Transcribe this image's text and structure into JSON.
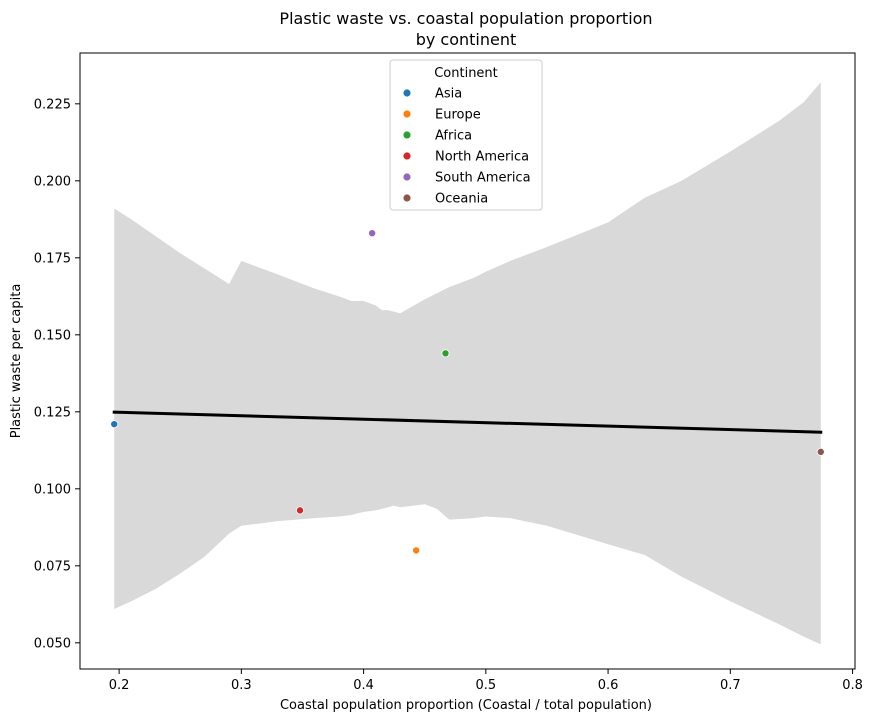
{
  "chart_data": {
    "type": "scatter",
    "title_lines": [
      "Plastic waste vs. coastal population proportion",
      "by continent"
    ],
    "xlabel": "Coastal population proportion (Coastal / total population)",
    "ylabel": "Plastic waste per capita",
    "xlim": [
      0.168,
      0.802
    ],
    "ylim": [
      0.0415,
      0.2415
    ],
    "x_ticks": [
      0.2,
      0.3,
      0.4,
      0.5,
      0.6,
      0.7,
      0.8
    ],
    "x_tick_labels": [
      "0.2",
      "0.3",
      "0.4",
      "0.5",
      "0.6",
      "0.7",
      "0.8"
    ],
    "y_ticks": [
      0.05,
      0.075,
      0.1,
      0.125,
      0.15,
      0.175,
      0.2,
      0.225
    ],
    "y_tick_labels": [
      "0.050",
      "0.075",
      "0.100",
      "0.125",
      "0.150",
      "0.175",
      "0.200",
      "0.225"
    ],
    "grid": false,
    "legend": {
      "title": "Continent",
      "placement": "top-center"
    },
    "series": [
      {
        "name": "Asia",
        "color": "#1f77b4",
        "points": [
          {
            "x": 0.196,
            "y": 0.121
          }
        ]
      },
      {
        "name": "Europe",
        "color": "#ff7f0e",
        "points": [
          {
            "x": 0.443,
            "y": 0.08
          }
        ]
      },
      {
        "name": "Africa",
        "color": "#2ca02c",
        "points": [
          {
            "x": 0.467,
            "y": 0.144
          }
        ]
      },
      {
        "name": "North America",
        "color": "#d62728",
        "points": [
          {
            "x": 0.348,
            "y": 0.093
          }
        ]
      },
      {
        "name": "South America",
        "color": "#9467bd",
        "points": [
          {
            "x": 0.407,
            "y": 0.183
          }
        ]
      },
      {
        "name": "Oceania",
        "color": "#8c564b",
        "points": [
          {
            "x": 0.774,
            "y": 0.112
          }
        ]
      }
    ],
    "regression": {
      "color": "#000000",
      "x": [
        0.196,
        0.774
      ],
      "y": [
        0.1249,
        0.1184
      ]
    },
    "confidence_band": {
      "color": "#d9d9d9",
      "x": [
        0.196,
        0.21,
        0.23,
        0.25,
        0.27,
        0.29,
        0.3,
        0.33,
        0.36,
        0.38,
        0.39,
        0.4,
        0.41,
        0.415,
        0.42,
        0.425,
        0.43,
        0.45,
        0.46,
        0.47,
        0.49,
        0.5,
        0.52,
        0.55,
        0.6,
        0.63,
        0.66,
        0.7,
        0.74,
        0.76,
        0.774
      ],
      "upper": [
        0.191,
        0.1875,
        0.182,
        0.1765,
        0.1715,
        0.1665,
        0.174,
        0.1696,
        0.165,
        0.1625,
        0.161,
        0.161,
        0.1595,
        0.158,
        0.158,
        0.1575,
        0.157,
        0.1615,
        0.1635,
        0.1655,
        0.1685,
        0.1705,
        0.174,
        0.1785,
        0.1865,
        0.1945,
        0.2,
        0.2095,
        0.2195,
        0.2255,
        0.232
      ],
      "lower": [
        0.061,
        0.0635,
        0.0675,
        0.0725,
        0.078,
        0.0855,
        0.088,
        0.0895,
        0.0905,
        0.091,
        0.0915,
        0.0925,
        0.093,
        0.0935,
        0.094,
        0.0945,
        0.094,
        0.095,
        0.0935,
        0.09,
        0.0905,
        0.091,
        0.0905,
        0.088,
        0.082,
        0.0785,
        0.0715,
        0.0635,
        0.056,
        0.052,
        0.0495
      ]
    }
  }
}
